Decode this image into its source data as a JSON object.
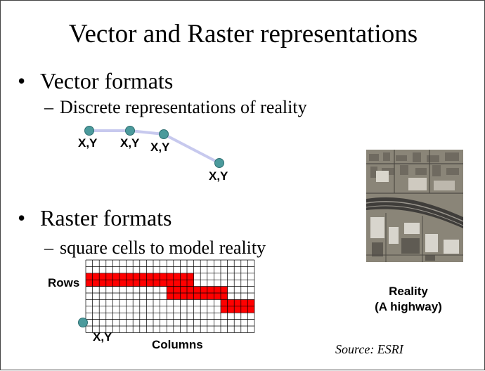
{
  "slide": {
    "title": "Vector and Raster representations",
    "bullet_vector": "Vector formats",
    "sub_vector": "Discrete representations of reality",
    "bullet_raster": "Raster formats",
    "sub_raster": "square cells to model reality",
    "bullet_glyph": "•",
    "dash_glyph": "–",
    "source": "Source: ESRI"
  },
  "vector_diagram": {
    "point_labels": [
      "X,Y",
      "X,Y",
      "X,Y",
      "X,Y"
    ],
    "line_color": "#c7c9ee",
    "node_color": "#4b9a9c"
  },
  "raster_diagram": {
    "rows_label": "Rows",
    "columns_label": "Columns",
    "origin_label": "X,Y",
    "grid_cols": 25,
    "grid_rows": 11,
    "fill_color": "#ff0000",
    "filled_cells": [
      {
        "row": 2,
        "from_col": 0,
        "to_col": 15
      },
      {
        "row": 3,
        "from_col": 0,
        "to_col": 15
      },
      {
        "row": 4,
        "from_col": 12,
        "to_col": 20
      },
      {
        "row": 5,
        "from_col": 12,
        "to_col": 20
      },
      {
        "row": 6,
        "from_col": 20,
        "to_col": 24
      },
      {
        "row": 7,
        "from_col": 20,
        "to_col": 24
      }
    ]
  },
  "reality": {
    "line1": "Reality",
    "line2": "(A highway)",
    "image_alt": "aerial photo of highway"
  }
}
